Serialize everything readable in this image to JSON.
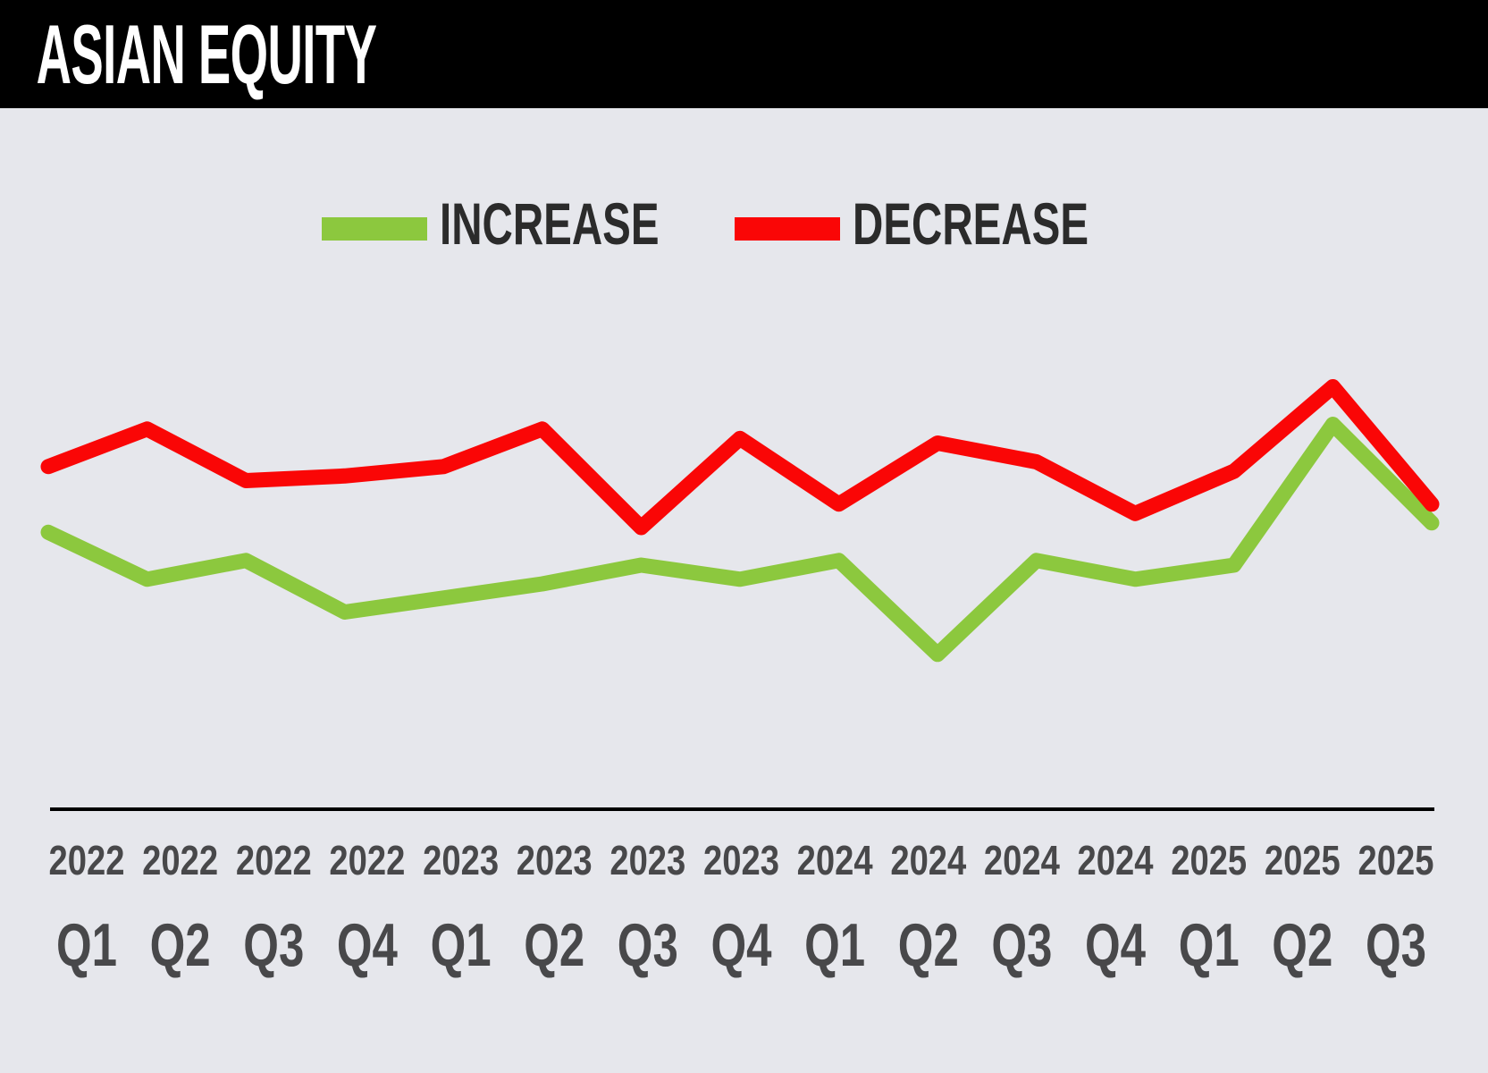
{
  "header": {
    "title": "ASIAN EQUITY"
  },
  "legend": {
    "items": [
      {
        "label": "INCREASE",
        "series": "increase",
        "color": "#8cc83e"
      },
      {
        "label": "DECREASE",
        "series": "decrease",
        "color": "#fa0606"
      }
    ]
  },
  "colors": {
    "background": "#e6e7ec",
    "header_background": "#000000",
    "title_text": "#ffffff",
    "legend_text": "#2b2b2b",
    "axis_line": "#000000",
    "tick_label": "#48484a",
    "increase_line": "#8cc83e",
    "decrease_line": "#fa0606"
  },
  "chart_data": {
    "type": "line",
    "title": "ASIAN EQUITY",
    "x_ticks": [
      {
        "year": "2022",
        "quarter": "Q1"
      },
      {
        "year": "2022",
        "quarter": "Q2"
      },
      {
        "year": "2022",
        "quarter": "Q3"
      },
      {
        "year": "2022",
        "quarter": "Q4"
      },
      {
        "year": "2023",
        "quarter": "Q1"
      },
      {
        "year": "2023",
        "quarter": "Q2"
      },
      {
        "year": "2023",
        "quarter": "Q3"
      },
      {
        "year": "2023",
        "quarter": "Q4"
      },
      {
        "year": "2024",
        "quarter": "Q1"
      },
      {
        "year": "2024",
        "quarter": "Q2"
      },
      {
        "year": "2024",
        "quarter": "Q3"
      },
      {
        "year": "2024",
        "quarter": "Q4"
      },
      {
        "year": "2025",
        "quarter": "Q1"
      },
      {
        "year": "2025",
        "quarter": "Q2"
      },
      {
        "year": "2025",
        "quarter": "Q3"
      }
    ],
    "series": [
      {
        "name": "INCREASE",
        "color": "#8cc83e",
        "values": [
          59,
          49,
          53,
          42,
          45,
          48,
          52,
          49,
          53,
          33,
          53,
          49,
          52,
          82,
          61
        ]
      },
      {
        "name": "DECREASE",
        "color": "#fa0606",
        "values": [
          73,
          81,
          70,
          71,
          73,
          81,
          60,
          79,
          65,
          78,
          74,
          63,
          72,
          90,
          65
        ]
      }
    ],
    "ylim": [
      0,
      100
    ],
    "y_axis_visible": false,
    "grid": false,
    "legend_position": "top-center"
  }
}
